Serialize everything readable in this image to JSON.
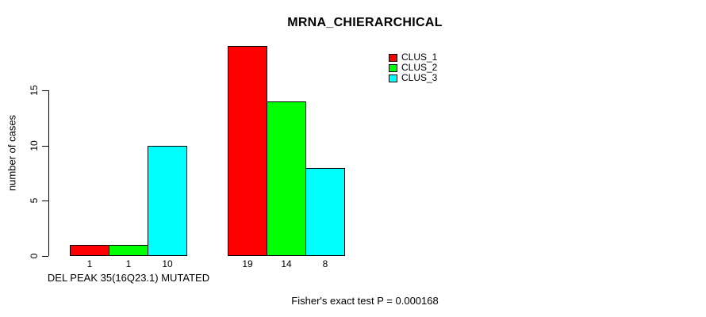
{
  "title": "MRNA_CHIERARCHICAL",
  "y_axis": {
    "label": "number of cases",
    "tick_labels": [
      "0",
      "5",
      "10",
      "15"
    ]
  },
  "x_axis": {
    "label": "DEL PEAK 35(16Q23.1) MUTATED"
  },
  "caption": "Fisher's exact test P = 0.000168",
  "legend": {
    "items": [
      {
        "label": "CLUS_1",
        "color": "#ff0000"
      },
      {
        "label": "CLUS_2",
        "color": "#00ff00"
      },
      {
        "label": "CLUS_3",
        "color": "#00ffff"
      }
    ]
  },
  "chart_data": {
    "type": "bar",
    "title": "MRNA_CHIERARCHICAL",
    "xlabel": "DEL PEAK 35(16Q23.1) MUTATED",
    "ylabel": "number of cases",
    "ylim": [
      0,
      19
    ],
    "y_ticks": [
      0,
      5,
      10,
      15
    ],
    "grid": false,
    "legend_position": "top-right",
    "groups": [
      "DEL PEAK 35(16Q23.1) MUTATED",
      ""
    ],
    "series": [
      {
        "name": "CLUS_1",
        "color": "#ff0000",
        "values": [
          1,
          19
        ]
      },
      {
        "name": "CLUS_2",
        "color": "#00ff00",
        "values": [
          1,
          14
        ]
      },
      {
        "name": "CLUS_3",
        "color": "#00ffff",
        "values": [
          10,
          8
        ]
      }
    ],
    "bar_labels": [
      [
        "1",
        "1",
        "10"
      ],
      [
        "19",
        "14",
        "8"
      ]
    ],
    "annotation": "Fisher's exact test P = 0.000168",
    "bar_border_color": "#000000"
  }
}
